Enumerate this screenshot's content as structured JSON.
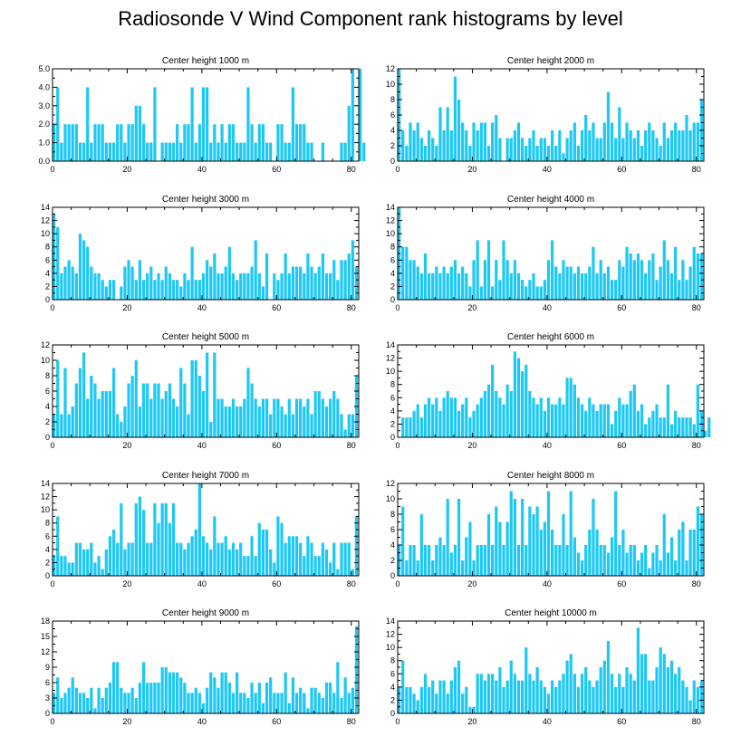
{
  "title": "Radiosonde V Wind Component rank histograms by level",
  "bar_color": "#1ec8f5",
  "chart_data": [
    {
      "type": "bar",
      "title": "Center height 1000 m",
      "xlim": [
        0,
        82
      ],
      "ylim": [
        0,
        5
      ],
      "yticks": [
        0,
        1,
        2,
        3,
        4,
        5
      ],
      "ytick_labels": [
        "0.0",
        "1.0",
        "2.0",
        "3.0",
        "4.0",
        "5.0"
      ],
      "xticks": [
        0,
        20,
        40,
        60,
        80
      ],
      "values": [
        2,
        4,
        1,
        2,
        2,
        2,
        2,
        1,
        1,
        4,
        1,
        2,
        2,
        2,
        1,
        1,
        1,
        2,
        2,
        1,
        2,
        2,
        3,
        3,
        2,
        1,
        1,
        4,
        0,
        1,
        1,
        1,
        1,
        2,
        1,
        2,
        2,
        4,
        1,
        2,
        4,
        4,
        1,
        2,
        1,
        2,
        1,
        2,
        2,
        1,
        1,
        1,
        4,
        2,
        1,
        2,
        2,
        1,
        1,
        0,
        2,
        2,
        1,
        1,
        4,
        2,
        2,
        2,
        1,
        1,
        0,
        0,
        1,
        0,
        0,
        0,
        0,
        1,
        1,
        3,
        5,
        0,
        5,
        1
      ]
    },
    {
      "type": "bar",
      "title": "Center height 2000 m",
      "xlim": [
        0,
        82
      ],
      "ylim": [
        0,
        12
      ],
      "yticks": [
        0,
        2,
        4,
        6,
        8,
        10,
        12
      ],
      "ytick_labels": [
        "0",
        "2",
        "4",
        "6",
        "8",
        "10",
        "12"
      ],
      "xticks": [
        0,
        20,
        40,
        60,
        80
      ],
      "values": [
        12,
        4,
        2,
        5,
        4,
        5,
        3,
        2,
        4,
        3,
        2,
        7,
        4,
        7,
        4,
        11,
        8,
        5,
        4,
        2,
        5,
        4,
        5,
        5,
        2,
        5,
        6,
        3,
        0,
        3,
        3,
        4,
        5,
        3,
        2,
        3,
        4,
        2,
        3,
        3,
        2,
        4,
        2,
        4,
        1,
        3,
        4,
        5,
        2,
        4,
        6,
        4,
        5,
        3,
        3,
        5,
        9,
        5,
        3,
        7,
        3,
        5,
        4,
        3,
        4,
        2,
        4,
        5,
        4,
        3,
        2,
        5,
        3,
        4,
        5,
        4,
        4,
        6,
        4,
        5,
        5,
        8
      ]
    },
    {
      "type": "bar",
      "title": "Center height 3000 m",
      "xlim": [
        0,
        82
      ],
      "ylim": [
        0,
        14
      ],
      "yticks": [
        0,
        2,
        4,
        6,
        8,
        10,
        12,
        14
      ],
      "ytick_labels": [
        "0",
        "2",
        "4",
        "6",
        "8",
        "10",
        "12",
        "14"
      ],
      "xticks": [
        0,
        20,
        40,
        60,
        80
      ],
      "values": [
        13,
        11,
        4,
        5,
        6,
        5,
        4,
        10,
        9,
        8,
        5,
        4,
        4,
        3,
        2,
        3,
        3,
        0,
        2,
        5,
        6,
        5,
        3,
        6,
        3,
        4,
        5,
        3,
        4,
        3,
        5,
        4,
        3,
        3,
        2,
        4,
        3,
        8,
        3,
        3,
        4,
        6,
        5,
        7,
        4,
        4,
        5,
        8,
        4,
        3,
        4,
        4,
        4,
        5,
        9,
        4,
        2,
        7,
        0,
        4,
        3,
        4,
        7,
        4,
        5,
        5,
        5,
        4,
        7,
        5,
        4,
        5,
        7,
        4,
        4,
        6,
        3,
        6,
        6,
        7,
        9,
        5
      ]
    },
    {
      "type": "bar",
      "title": "Center height 4000 m",
      "xlim": [
        0,
        82
      ],
      "ylim": [
        0,
        14
      ],
      "yticks": [
        0,
        2,
        4,
        6,
        8,
        10,
        12,
        14
      ],
      "ytick_labels": [
        "0",
        "2",
        "4",
        "6",
        "8",
        "10",
        "12",
        "14"
      ],
      "xticks": [
        0,
        20,
        40,
        60,
        80
      ],
      "values": [
        14,
        8,
        8,
        6,
        6,
        5,
        4,
        7,
        4,
        4,
        5,
        4,
        5,
        4,
        5,
        6,
        4,
        5,
        4,
        2,
        6,
        9,
        2,
        6,
        9,
        2,
        6,
        3,
        9,
        6,
        4,
        6,
        4,
        3,
        2,
        3,
        4,
        2,
        2,
        3,
        6,
        9,
        5,
        4,
        6,
        5,
        5,
        4,
        5,
        4,
        4,
        5,
        8,
        4,
        6,
        4,
        5,
        3,
        3,
        6,
        5,
        8,
        7,
        6,
        7,
        6,
        4,
        6,
        7,
        3,
        5,
        9,
        6,
        4,
        8,
        3,
        6,
        3,
        5,
        8,
        7,
        7
      ]
    },
    {
      "type": "bar",
      "title": "Center height 5000 m",
      "xlim": [
        0,
        82
      ],
      "ylim": [
        0,
        12
      ],
      "yticks": [
        0,
        2,
        4,
        6,
        8,
        10,
        12
      ],
      "ytick_labels": [
        "0",
        "2",
        "4",
        "6",
        "8",
        "10",
        "12"
      ],
      "xticks": [
        0,
        20,
        40,
        60,
        80
      ],
      "values": [
        3,
        10,
        3,
        9,
        3,
        4,
        7,
        9,
        11,
        5,
        8,
        7,
        5,
        6,
        6,
        6,
        9,
        3,
        2,
        4,
        7,
        8,
        10,
        4,
        7,
        7,
        5,
        7,
        7,
        5,
        6,
        7,
        5,
        4,
        9,
        7,
        3,
        10,
        10,
        8,
        6,
        11,
        2,
        11,
        5,
        5,
        4,
        4,
        5,
        4,
        4,
        5,
        9,
        7,
        5,
        4,
        5,
        5,
        3,
        5,
        5,
        4,
        3,
        5,
        3,
        5,
        5,
        4,
        5,
        3,
        6,
        6,
        5,
        4,
        5,
        6,
        5,
        3,
        1,
        3,
        3,
        8
      ]
    },
    {
      "type": "bar",
      "title": "Center height 6000 m",
      "xlim": [
        0,
        82
      ],
      "ylim": [
        0,
        14
      ],
      "yticks": [
        0,
        2,
        4,
        6,
        8,
        10,
        12,
        14
      ],
      "ytick_labels": [
        "0",
        "2",
        "4",
        "6",
        "8",
        "10",
        "12",
        "14"
      ],
      "xticks": [
        0,
        20,
        40,
        60,
        80
      ],
      "values": [
        0,
        3,
        3,
        3,
        4,
        5,
        3,
        5,
        6,
        5,
        6,
        4,
        6,
        7,
        6,
        6,
        4,
        5,
        6,
        3,
        4,
        5,
        6,
        7,
        8,
        11,
        7,
        6,
        5,
        8,
        7,
        13,
        12,
        10,
        11,
        7,
        6,
        5,
        6,
        4,
        6,
        5,
        5,
        6,
        5,
        9,
        9,
        8,
        6,
        5,
        4,
        6,
        5,
        4,
        5,
        5,
        5,
        2,
        4,
        6,
        5,
        5,
        7,
        8,
        4,
        5,
        2,
        3,
        4,
        5,
        3,
        3,
        8,
        2,
        4,
        3,
        3,
        3,
        3,
        2,
        8,
        4,
        1,
        3
      ]
    },
    {
      "type": "bar",
      "title": "Center height 7000 m",
      "xlim": [
        0,
        82
      ],
      "ylim": [
        0,
        14
      ],
      "yticks": [
        0,
        2,
        4,
        6,
        8,
        10,
        12,
        14
      ],
      "ytick_labels": [
        "0",
        "2",
        "4",
        "6",
        "8",
        "10",
        "12",
        "14"
      ],
      "xticks": [
        0,
        20,
        40,
        60,
        80
      ],
      "values": [
        3,
        9,
        3,
        3,
        2,
        2,
        5,
        5,
        4,
        4,
        5,
        2,
        3,
        1,
        4,
        6,
        7,
        5,
        11,
        4,
        5,
        5,
        11,
        12,
        10,
        5,
        5,
        11,
        8,
        11,
        11,
        8,
        11,
        5,
        5,
        4,
        5,
        6,
        7,
        14,
        6,
        5,
        4,
        9,
        5,
        5,
        6,
        4,
        5,
        4,
        5,
        3,
        3,
        6,
        3,
        8,
        7,
        7,
        4,
        2,
        9,
        8,
        5,
        6,
        6,
        6,
        5,
        3,
        6,
        5,
        3,
        3,
        5,
        4,
        2,
        5,
        1,
        5,
        5,
        5,
        1,
        9
      ]
    },
    {
      "type": "bar",
      "title": "Center height 8000 m",
      "xlim": [
        0,
        82
      ],
      "ylim": [
        0,
        12
      ],
      "yticks": [
        0,
        2,
        4,
        6,
        8,
        10,
        12
      ],
      "ytick_labels": [
        "0",
        "2",
        "4",
        "6",
        "8",
        "10",
        "12"
      ],
      "xticks": [
        0,
        20,
        40,
        60,
        80
      ],
      "values": [
        4,
        9,
        2,
        4,
        4,
        2,
        8,
        4,
        4,
        2,
        4,
        5,
        4,
        10,
        3,
        4,
        10,
        2,
        5,
        7,
        2,
        4,
        4,
        4,
        8,
        4,
        9,
        7,
        4,
        7,
        11,
        10,
        4,
        10,
        4,
        9,
        8,
        9,
        6,
        7,
        11,
        6,
        4,
        4,
        8,
        4,
        11,
        5,
        3,
        2,
        4,
        6,
        10,
        6,
        4,
        4,
        3,
        5,
        11,
        4,
        6,
        3,
        4,
        4,
        2,
        3,
        4,
        1,
        3,
        4,
        2,
        8,
        3,
        5,
        2,
        6,
        7,
        2,
        6,
        6,
        9,
        8
      ]
    },
    {
      "type": "bar",
      "title": "Center height 9000 m",
      "xlim": [
        0,
        82
      ],
      "ylim": [
        0,
        18
      ],
      "yticks": [
        0,
        3,
        6,
        9,
        12,
        15,
        18
      ],
      "ytick_labels": [
        "0",
        "3",
        "6",
        "9",
        "12",
        "15",
        "18"
      ],
      "xticks": [
        0,
        20,
        40,
        60,
        80
      ],
      "values": [
        4,
        7,
        3,
        4,
        5,
        7,
        5,
        4,
        4,
        3,
        5,
        1,
        5,
        3,
        5,
        6,
        10,
        10,
        5,
        4,
        4,
        5,
        3,
        6,
        10,
        6,
        6,
        6,
        6,
        9,
        9,
        8,
        8,
        8,
        7,
        6,
        4,
        4,
        5,
        4,
        2,
        5,
        8,
        7,
        5,
        8,
        8,
        6,
        4,
        8,
        4,
        4,
        3,
        6,
        4,
        6,
        2,
        6,
        7,
        4,
        4,
        4,
        8,
        2,
        7,
        4,
        5,
        4,
        1,
        5,
        5,
        4,
        3,
        6,
        6,
        4,
        10,
        3,
        7,
        4,
        5,
        17
      ]
    },
    {
      "type": "bar",
      "title": "Center height 10000 m",
      "xlim": [
        0,
        82
      ],
      "ylim": [
        0,
        14
      ],
      "yticks": [
        0,
        2,
        4,
        6,
        8,
        10,
        12,
        14
      ],
      "ytick_labels": [
        "0",
        "2",
        "4",
        "6",
        "8",
        "10",
        "12",
        "14"
      ],
      "xticks": [
        0,
        20,
        40,
        60,
        80
      ],
      "values": [
        4,
        8,
        4,
        4,
        3,
        2,
        4,
        6,
        4,
        5,
        3,
        5,
        5,
        3,
        5,
        7,
        8,
        3,
        4,
        1,
        1,
        6,
        6,
        5,
        6,
        6,
        5,
        7,
        4,
        5,
        8,
        6,
        5,
        5,
        10,
        6,
        5,
        7,
        5,
        4,
        3,
        5,
        4,
        5,
        6,
        8,
        9,
        6,
        4,
        6,
        7,
        5,
        4,
        5,
        7,
        8,
        11,
        6,
        4,
        6,
        4,
        7,
        6,
        5,
        13,
        9,
        9,
        5,
        5,
        7,
        10,
        9,
        7,
        8,
        6,
        7,
        5,
        4,
        2,
        5,
        4,
        5
      ]
    }
  ]
}
